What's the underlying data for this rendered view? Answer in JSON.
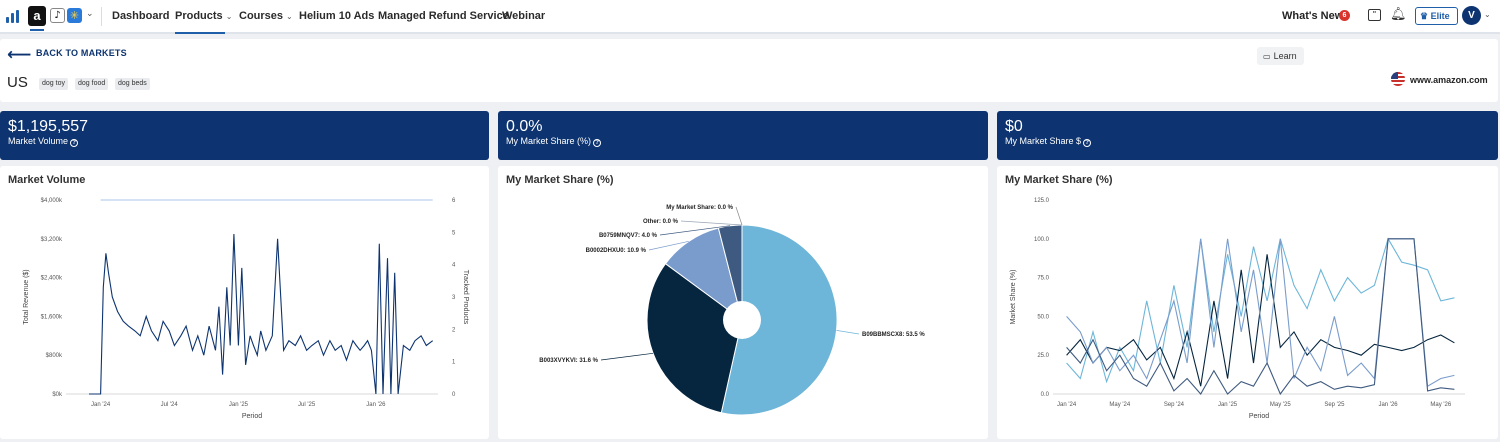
{
  "nav": {
    "tools": [
      {
        "name": "amazon",
        "glyph": "a"
      },
      {
        "name": "tiktok",
        "glyph": "♪"
      },
      {
        "name": "walmart",
        "glyph": "✳"
      }
    ],
    "links": [
      {
        "label": "Dashboard",
        "dropdown": false
      },
      {
        "label": "Products",
        "dropdown": true,
        "active": true
      },
      {
        "label": "Courses",
        "dropdown": true
      },
      {
        "label": "Helium 10 Ads",
        "dropdown": false
      },
      {
        "label": "Managed Refund Service",
        "dropdown": false
      },
      {
        "label": "Webinar",
        "dropdown": false
      }
    ],
    "whats_new": "What's New",
    "whats_new_count": "6",
    "elite_label": "Elite",
    "avatar_initial": "V"
  },
  "header": {
    "back_label": "BACK TO MARKETS",
    "market_name": "US",
    "keywords": [
      "dog toy",
      "dog food",
      "dog beds"
    ],
    "learn_label": "Learn",
    "domain": "www.amazon.com"
  },
  "stats": [
    {
      "value": "$1,195,557",
      "label": "Market Volume"
    },
    {
      "value": "0.0%",
      "label": "My Market Share (%)"
    },
    {
      "value": "$0",
      "label": "My Market Share $"
    }
  ],
  "colors": {
    "navy": "#0d3470",
    "accent": "#1f5ea8"
  },
  "chart_data": [
    {
      "type": "line",
      "title": "Market Volume",
      "xlabel": "Period",
      "ylabel": "Total Revenue ($)",
      "y2label": "Tracked Products",
      "y_ticks": [
        "$0k",
        "$800k",
        "$1,600k",
        "$2,400k",
        "$3,200k",
        "$4,000k"
      ],
      "y2_ticks": [
        "0",
        "1",
        "2",
        "3",
        "4",
        "5",
        "6"
      ],
      "x_ticks": [
        "Jan '24",
        "Jul '24",
        "Jan '25",
        "Jul '25",
        "Jan '26"
      ],
      "ylim": [
        0,
        4000
      ],
      "y2lim": [
        0,
        6
      ],
      "series": [
        {
          "name": "Total Revenue",
          "axis": "left",
          "color": "#0d3470",
          "x": [
            "2023-12-01",
            "2023-12-15",
            "2024-01-01",
            "2024-01-08",
            "2024-01-15",
            "2024-01-22",
            "2024-02-01",
            "2024-02-15",
            "2024-03-01",
            "2024-03-15",
            "2024-04-01",
            "2024-04-15",
            "2024-05-01",
            "2024-05-15",
            "2024-06-01",
            "2024-06-15",
            "2024-07-01",
            "2024-07-15",
            "2024-08-01",
            "2024-08-15",
            "2024-09-01",
            "2024-09-15",
            "2024-10-01",
            "2024-10-15",
            "2024-11-01",
            "2024-11-10",
            "2024-11-20",
            "2024-12-01",
            "2024-12-10",
            "2024-12-20",
            "2025-01-01",
            "2025-01-10",
            "2025-01-20",
            "2025-02-01",
            "2025-02-10",
            "2025-02-20",
            "2025-03-01",
            "2025-03-15",
            "2025-04-01",
            "2025-04-15",
            "2025-05-01",
            "2025-05-15",
            "2025-06-01",
            "2025-06-15",
            "2025-07-01",
            "2025-07-15",
            "2025-08-01",
            "2025-08-15",
            "2025-09-01",
            "2025-09-15",
            "2025-10-01",
            "2025-10-15",
            "2025-11-01",
            "2025-11-10",
            "2025-11-20",
            "2025-12-01",
            "2025-12-10",
            "2025-12-20",
            "2026-01-01",
            "2026-01-10",
            "2026-01-20",
            "2026-02-01",
            "2026-02-10",
            "2026-02-20",
            "2026-03-01",
            "2026-03-15",
            "2026-04-01",
            "2026-04-15",
            "2026-05-01",
            "2026-05-15",
            "2026-06-01"
          ],
          "values": [
            0,
            0,
            0,
            2200,
            2900,
            2500,
            2000,
            1700,
            1500,
            1400,
            1300,
            1200,
            1600,
            1300,
            1100,
            1500,
            1300,
            1000,
            1200,
            1400,
            900,
            1200,
            800,
            1400,
            900,
            1800,
            400,
            2200,
            1000,
            3300,
            1000,
            2600,
            600,
            1200,
            1000,
            800,
            1300,
            900,
            1200,
            3200,
            900,
            1100,
            1000,
            1200,
            900,
            1000,
            1100,
            800,
            1100,
            900,
            1000,
            700,
            1100,
            1000,
            900,
            1000,
            1100,
            900,
            0,
            3100,
            0,
            2800,
            0,
            2500,
            0,
            1000,
            900,
            1100,
            1200,
            1000,
            1100
          ]
        },
        {
          "name": "Tracked Products",
          "axis": "right",
          "color": "#8db3e0",
          "x": [
            "2024-01-01",
            "2026-06-01"
          ],
          "values": [
            6,
            6
          ]
        }
      ]
    },
    {
      "type": "pie",
      "title": "My Market Share (%)",
      "slices": [
        {
          "label": "B09BBMSCX8: 53.5 %",
          "value": 53.5,
          "color": "#6db6d9"
        },
        {
          "label": "B003XVYKVI: 31.6 %",
          "value": 31.6,
          "color": "#06263f"
        },
        {
          "label": "B0002DHXU0: 10.9 %",
          "value": 10.9,
          "color": "#7a9ccc"
        },
        {
          "label": "B0759MNQV7: 4.0 %",
          "value": 4.0,
          "color": "#3f5a80"
        },
        {
          "label": "Other: 0.0 %",
          "value": 0.0,
          "color": "#9aa5b5"
        },
        {
          "label": "My Market Share: 0.0 %",
          "value": 0.0,
          "color": "#c9ced6"
        }
      ]
    },
    {
      "type": "line",
      "title": "My Market Share (%)",
      "xlabel": "Period",
      "ylabel": "Market Share (%)",
      "y_ticks": [
        "0.0",
        "25.0",
        "50.0",
        "75.0",
        "100.0",
        "125.0"
      ],
      "x_ticks": [
        "Jan '24",
        "May '24",
        "Sep '24",
        "Jan '25",
        "May '25",
        "Sep '25",
        "Jan '26",
        "May '26"
      ],
      "ylim": [
        0,
        125
      ],
      "series": [
        {
          "color": "#6db6d9",
          "x": [
            "2024-01-01",
            "2024-02-01",
            "2024-03-01",
            "2024-04-01",
            "2024-05-01",
            "2024-06-01",
            "2024-07-01",
            "2024-08-01",
            "2024-09-01",
            "2024-10-01",
            "2024-11-01",
            "2024-12-01",
            "2025-01-01",
            "2025-02-01",
            "2025-03-01",
            "2025-04-01",
            "2025-05-01",
            "2025-06-01",
            "2025-07-01",
            "2025-08-01",
            "2025-09-01",
            "2025-10-01",
            "2025-11-01",
            "2025-12-01",
            "2026-01-01",
            "2026-02-01",
            "2026-03-01",
            "2026-04-01",
            "2026-05-01",
            "2026-06-01"
          ],
          "values": [
            20,
            10,
            40,
            8,
            30,
            15,
            60,
            20,
            70,
            30,
            100,
            40,
            90,
            50,
            95,
            60,
            100,
            70,
            55,
            80,
            60,
            75,
            65,
            70,
            100,
            85,
            83,
            80,
            60,
            62
          ]
        },
        {
          "color": "#06263f",
          "x": [
            "2024-01-01",
            "2024-02-01",
            "2024-03-01",
            "2024-04-01",
            "2024-05-01",
            "2024-06-01",
            "2024-07-01",
            "2024-08-01",
            "2024-09-01",
            "2024-10-01",
            "2024-11-01",
            "2024-12-01",
            "2025-01-01",
            "2025-02-01",
            "2025-03-01",
            "2025-04-01",
            "2025-05-01",
            "2025-06-01",
            "2025-07-01",
            "2025-08-01",
            "2025-09-01",
            "2025-10-01",
            "2025-11-01",
            "2025-12-01",
            "2026-01-01",
            "2026-02-01",
            "2026-03-01",
            "2026-04-01",
            "2026-05-01",
            "2026-06-01"
          ],
          "values": [
            25,
            35,
            20,
            30,
            28,
            35,
            22,
            30,
            10,
            40,
            5,
            60,
            10,
            80,
            20,
            90,
            30,
            40,
            25,
            35,
            30,
            28,
            25,
            32,
            30,
            28,
            30,
            35,
            38,
            33
          ]
        },
        {
          "color": "#7a9ccc",
          "x": [
            "2024-01-01",
            "2024-02-01",
            "2024-03-01",
            "2024-04-01",
            "2024-05-01",
            "2024-06-01",
            "2024-07-01",
            "2024-08-01",
            "2024-09-01",
            "2024-10-01",
            "2024-11-01",
            "2024-12-01",
            "2025-01-01",
            "2025-02-01",
            "2025-03-01",
            "2025-04-01",
            "2025-05-01",
            "2025-06-01",
            "2025-07-01",
            "2025-08-01",
            "2025-09-01",
            "2025-10-01",
            "2025-11-01",
            "2025-12-01",
            "2026-01-01",
            "2026-02-01",
            "2026-03-01",
            "2026-04-01",
            "2026-05-01",
            "2026-06-01"
          ],
          "values": [
            50,
            40,
            20,
            30,
            15,
            25,
            10,
            35,
            60,
            20,
            100,
            30,
            100,
            40,
            80,
            20,
            100,
            10,
            30,
            15,
            50,
            12,
            20,
            10,
            100,
            100,
            100,
            5,
            10,
            12
          ]
        },
        {
          "color": "#3f5a80",
          "x": [
            "2024-01-01",
            "2024-02-01",
            "2024-03-01",
            "2024-04-01",
            "2024-05-01",
            "2024-06-01",
            "2024-07-01",
            "2024-08-01",
            "2024-09-01",
            "2024-10-01",
            "2024-11-01",
            "2024-12-01",
            "2025-01-01",
            "2025-02-01",
            "2025-03-01",
            "2025-04-01",
            "2025-05-01",
            "2025-06-01",
            "2025-07-01",
            "2025-08-01",
            "2025-09-01",
            "2025-10-01",
            "2025-11-01",
            "2025-12-01",
            "2026-01-01",
            "2026-02-01",
            "2026-03-01",
            "2026-04-01",
            "2026-05-01",
            "2026-06-01"
          ],
          "values": [
            30,
            20,
            35,
            15,
            25,
            10,
            5,
            20,
            2,
            10,
            0,
            15,
            0,
            8,
            5,
            20,
            0,
            12,
            5,
            8,
            3,
            5,
            4,
            6,
            100,
            100,
            100,
            2,
            4,
            3
          ]
        }
      ]
    }
  ]
}
